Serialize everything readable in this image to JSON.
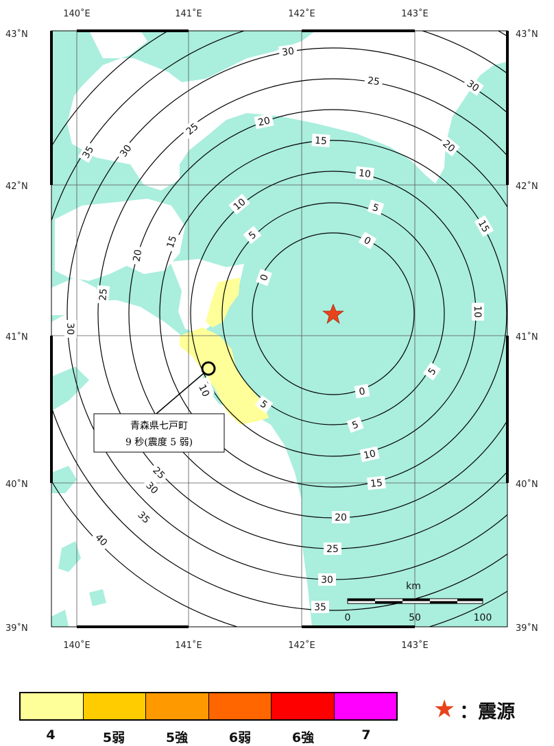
{
  "map": {
    "longitude_labels": [
      "140˚E",
      "141˚E",
      "142˚E",
      "143˚E"
    ],
    "latitude_labels": [
      "43˚N",
      "42˚N",
      "41˚N",
      "40˚N",
      "39˚N"
    ],
    "epicenter": {
      "lon": 142.28,
      "lat": 41.15
    },
    "station": {
      "lon": 141.15,
      "lat": 40.76,
      "name": "青森県七戸町",
      "detail": "9 秒(震度 5 弱)"
    },
    "contour_labels": [
      {
        "text": "30"
      },
      {
        "text": "25"
      },
      {
        "text": "20"
      },
      {
        "text": "15"
      },
      {
        "text": "10"
      },
      {
        "text": "5"
      },
      {
        "text": "0"
      },
      {
        "text": "30"
      },
      {
        "text": "25"
      },
      {
        "text": "20"
      },
      {
        "text": "15"
      },
      {
        "text": "10"
      },
      {
        "text": "5"
      },
      {
        "text": "35"
      },
      {
        "text": "30"
      },
      {
        "text": "25"
      },
      {
        "text": "20"
      },
      {
        "text": "15"
      },
      {
        "text": "10"
      },
      {
        "text": "5"
      },
      {
        "text": "0"
      },
      {
        "text": "10"
      },
      {
        "text": "5"
      },
      {
        "text": "0"
      },
      {
        "text": "5"
      },
      {
        "text": "10"
      },
      {
        "text": "15"
      },
      {
        "text": "20"
      },
      {
        "text": "25"
      },
      {
        "text": "30"
      },
      {
        "text": "35"
      },
      {
        "text": "25"
      },
      {
        "text": "30"
      },
      {
        "text": "35"
      },
      {
        "text": "40"
      },
      {
        "text": "30"
      },
      {
        "text": "10"
      }
    ],
    "scale_bar": {
      "unit": "km",
      "labels": [
        "0",
        "50",
        "100"
      ]
    },
    "colors": {
      "sea": "#aaeedd",
      "land": "#ffffff",
      "intensity_4_land": "#ffff99",
      "epicenter": "#e8431b"
    }
  },
  "legend": {
    "items": [
      {
        "label": "4",
        "color": "#ffff99"
      },
      {
        "label": "5弱",
        "color": "#ffcc00"
      },
      {
        "label": "5強",
        "color": "#ff9900"
      },
      {
        "label": "6弱",
        "color": "#ff6600"
      },
      {
        "label": "6強",
        "color": "#ff0000"
      },
      {
        "label": "7",
        "color": "#ff00ff"
      }
    ],
    "epicenter_label": "：震源"
  }
}
